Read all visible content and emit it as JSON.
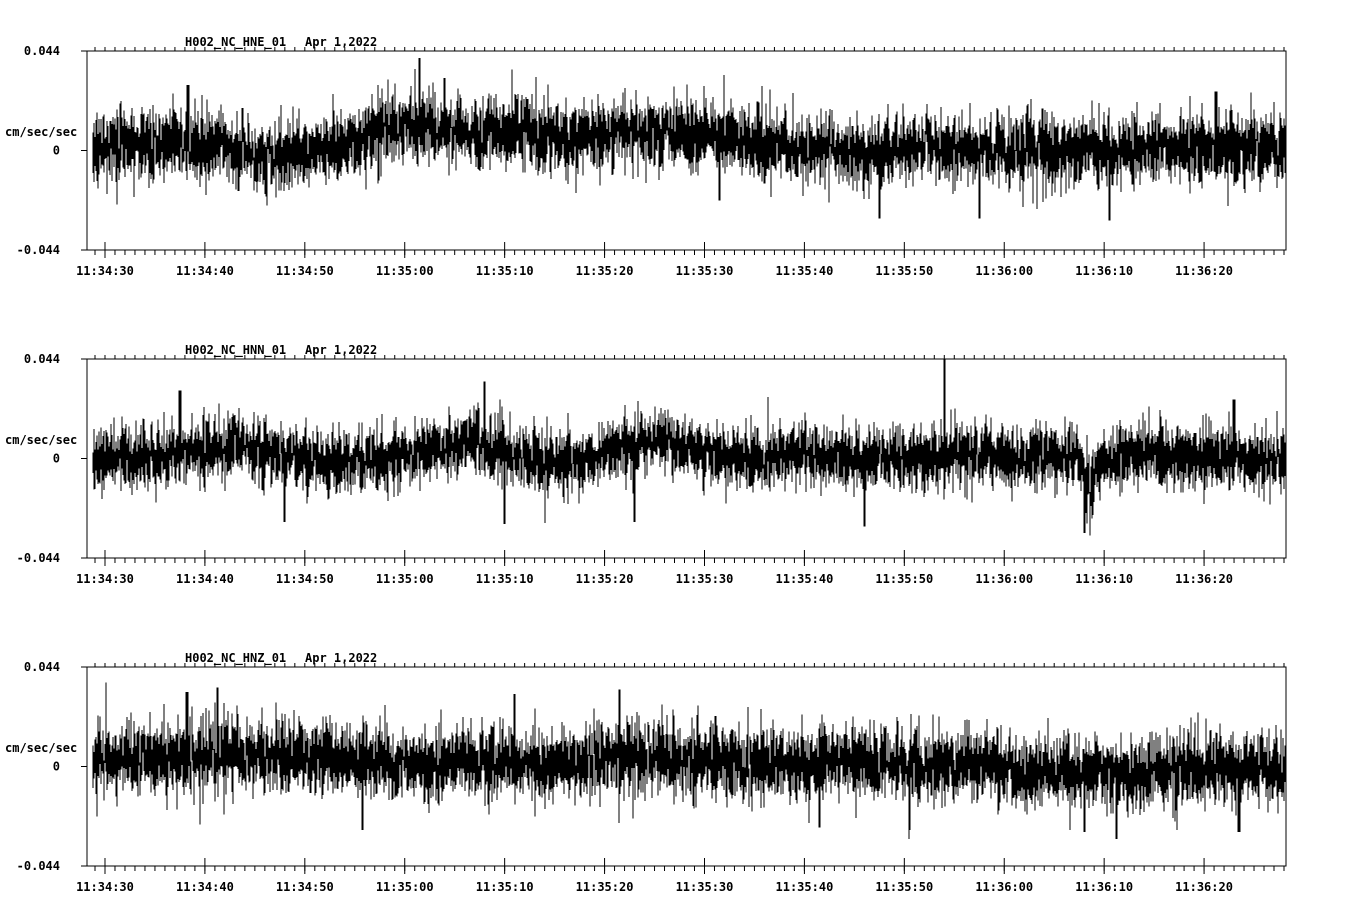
{
  "chart_data": [
    {
      "type": "line",
      "title": "H002_NC_HNE_01",
      "date": "Apr 1,2022",
      "ylabel": "cm/sec/sec",
      "ylim": [
        -0.044,
        0.044
      ],
      "y_tick_labels": [
        "0.044",
        "0",
        "-0.044"
      ],
      "x_tick_labels": [
        "11:34:30",
        "11:34:40",
        "11:34:50",
        "11:35:00",
        "11:35:10",
        "11:35:20",
        "11:35:30",
        "11:35:40",
        "11:35:50",
        "11:36:00",
        "11:36:10",
        "11:36:20"
      ],
      "line_color": "#000000",
      "grid": false,
      "trend": [
        [
          -1.8,
          0.002
        ],
        [
          8,
          0.003
        ],
        [
          12,
          0.001
        ],
        [
          15,
          -0.003
        ],
        [
          20,
          -0.001
        ],
        [
          25,
          0.003
        ],
        [
          27,
          0.009
        ],
        [
          32,
          0.011
        ],
        [
          37,
          0.008
        ],
        [
          42,
          0.009
        ],
        [
          46,
          0.005
        ],
        [
          52,
          0.008
        ],
        [
          57,
          0.009
        ],
        [
          62,
          0.005
        ],
        [
          67,
          0.002
        ],
        [
          72,
          0.001
        ],
        [
          77,
          -0.002
        ],
        [
          82,
          0.002
        ],
        [
          87,
          -0.001
        ],
        [
          92,
          0.001
        ],
        [
          97,
          0.0
        ],
        [
          102,
          0.0
        ],
        [
          106,
          0.002
        ],
        [
          112,
          0.001
        ],
        [
          117,
          0.001
        ]
      ],
      "noise_sd": 0.0075,
      "spikes": [
        [
          8.3,
          0.029
        ],
        [
          13.4,
          -0.018
        ],
        [
          31.5,
          0.041
        ],
        [
          34,
          0.032
        ],
        [
          61.5,
          -0.022
        ],
        [
          77.5,
          -0.03
        ],
        [
          87.5,
          -0.03
        ],
        [
          100.5,
          -0.031
        ],
        [
          111.2,
          0.026
        ]
      ]
    },
    {
      "type": "line",
      "title": "H002_NC_HNN_01",
      "date": "Apr 1,2022",
      "ylabel": "cm/sec/sec",
      "ylim": [
        -0.044,
        0.044
      ],
      "y_tick_labels": [
        "0.044",
        "0",
        "-0.044"
      ],
      "x_tick_labels": [
        "11:34:30",
        "11:34:40",
        "11:34:50",
        "11:35:00",
        "11:35:10",
        "11:35:20",
        "11:35:30",
        "11:35:40",
        "11:35:50",
        "11:36:00",
        "11:36:10",
        "11:36:20"
      ],
      "line_color": "#000000",
      "grid": false,
      "trend": [
        [
          -1.8,
          0.0
        ],
        [
          4,
          0.001
        ],
        [
          10,
          0.004
        ],
        [
          14,
          0.005
        ],
        [
          20,
          0.0
        ],
        [
          24,
          -0.002
        ],
        [
          28,
          0.0
        ],
        [
          33,
          0.003
        ],
        [
          37,
          0.007
        ],
        [
          40,
          0.002
        ],
        [
          44,
          -0.003
        ],
        [
          48,
          0.0
        ],
        [
          53,
          0.005
        ],
        [
          56,
          0.008
        ],
        [
          60,
          0.002
        ],
        [
          64,
          0.0
        ],
        [
          70,
          0.002
        ],
        [
          75,
          0.0
        ],
        [
          80,
          -0.001
        ],
        [
          85,
          0.002
        ],
        [
          90,
          0.001
        ],
        [
          95,
          0.001
        ],
        [
          97.5,
          0.0
        ],
        [
          98.5,
          -0.014
        ],
        [
          100,
          0.0
        ],
        [
          104,
          0.002
        ],
        [
          110,
          0.0
        ],
        [
          117,
          0.0
        ]
      ],
      "noise_sd": 0.0068,
      "spikes": [
        [
          7.5,
          0.03
        ],
        [
          18,
          -0.028
        ],
        [
          38,
          0.034
        ],
        [
          40,
          -0.029
        ],
        [
          53,
          -0.028
        ],
        [
          76,
          -0.03
        ],
        [
          84,
          0.044
        ],
        [
          98,
          -0.033
        ],
        [
          113,
          0.026
        ]
      ]
    },
    {
      "type": "line",
      "title": "H002_NC_HNZ_01",
      "date": "Apr 1,2022",
      "ylabel": "cm/sec/sec",
      "ylim": [
        -0.044,
        0.044
      ],
      "y_tick_labels": [
        "0.044",
        "0",
        "-0.044"
      ],
      "x_tick_labels": [
        "11:34:30",
        "11:34:40",
        "11:34:50",
        "11:35:00",
        "11:35:10",
        "11:35:20",
        "11:35:30",
        "11:35:40",
        "11:35:50",
        "11:36:00",
        "11:36:10",
        "11:36:20"
      ],
      "line_color": "#000000",
      "grid": false,
      "trend": [
        [
          -1.8,
          0.002
        ],
        [
          5,
          0.004
        ],
        [
          12,
          0.006
        ],
        [
          17,
          0.005
        ],
        [
          22,
          0.003
        ],
        [
          27,
          0.002
        ],
        [
          32,
          0.0
        ],
        [
          40,
          0.001
        ],
        [
          45,
          0.0
        ],
        [
          50,
          0.003
        ],
        [
          55,
          0.004
        ],
        [
          62,
          0.002
        ],
        [
          67,
          0.001
        ],
        [
          72,
          0.002
        ],
        [
          78,
          0.002
        ],
        [
          83,
          0.0
        ],
        [
          88,
          0.001
        ],
        [
          92,
          -0.003
        ],
        [
          97,
          -0.002
        ],
        [
          102,
          -0.003
        ],
        [
          107,
          -0.002
        ],
        [
          112,
          -0.001
        ],
        [
          117,
          -0.002
        ]
      ],
      "noise_sd": 0.0078,
      "spikes": [
        [
          8.2,
          0.033
        ],
        [
          11.3,
          0.035
        ],
        [
          25.8,
          -0.028
        ],
        [
          41,
          0.032
        ],
        [
          51.5,
          0.034
        ],
        [
          71.5,
          -0.027
        ],
        [
          80.5,
          -0.028
        ],
        [
          98,
          -0.029
        ],
        [
          101.2,
          -0.032
        ],
        [
          113.5,
          -0.029
        ]
      ]
    }
  ]
}
